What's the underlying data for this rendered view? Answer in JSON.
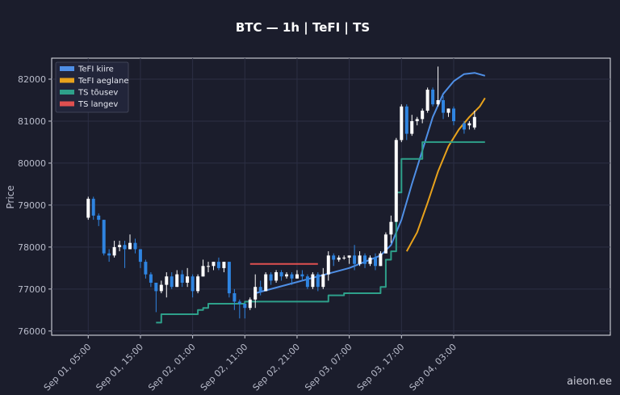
{
  "chart_data": {
    "type": "candlestick",
    "title": "BTC — 1h  |  TeFI  |  TS",
    "ylabel": "Price",
    "xlabel": "",
    "ylim": [
      75900,
      82500
    ],
    "xlim": [
      -7,
      100
    ],
    "yticks": [
      "76000",
      "77000",
      "78000",
      "79000",
      "80000",
      "81000",
      "82000"
    ],
    "ytick_values": [
      76000,
      77000,
      78000,
      79000,
      80000,
      81000,
      82000
    ],
    "xticks": [
      "Sep 01, 05:00",
      "Sep 01, 15:00",
      "Sep 02, 01:00",
      "Sep 02, 11:00",
      "Sep 02, 21:00",
      "Sep 03, 07:00",
      "Sep 03, 17:00",
      "Sep 04, 03:00"
    ],
    "xtick_hours": [
      0,
      10,
      20,
      30,
      40,
      50,
      60,
      70
    ],
    "grid": true,
    "legend": "top-left",
    "legend_entries": [
      {
        "label": "TeFI kiire",
        "color": "#4f8fe6"
      },
      {
        "label": "TeFI aeglane",
        "color": "#e8a21c"
      },
      {
        "label": "TS tõusev",
        "color": "#2ea08a"
      },
      {
        "label": "TS langev",
        "color": "#e05050"
      }
    ],
    "up_color": "#ffffff",
    "down_color": "#2f84e0",
    "candles": [
      [
        0,
        78700,
        79200,
        78650,
        79150
      ],
      [
        1,
        79150,
        79200,
        78650,
        78750
      ],
      [
        2,
        78750,
        78800,
        78500,
        78650
      ],
      [
        3,
        78650,
        78650,
        77800,
        77850
      ],
      [
        4,
        77850,
        77950,
        77650,
        77800
      ],
      [
        5,
        77800,
        78150,
        77750,
        78000
      ],
      [
        6,
        78000,
        78150,
        77900,
        78050
      ],
      [
        7,
        78050,
        78150,
        77500,
        77950
      ],
      [
        8,
        77950,
        78300,
        77950,
        78100
      ],
      [
        9,
        78100,
        78200,
        77850,
        77950
      ],
      [
        10,
        77950,
        77950,
        77500,
        77650
      ],
      [
        11,
        77650,
        77700,
        77250,
        77350
      ],
      [
        12,
        77350,
        77400,
        77050,
        77150
      ],
      [
        13,
        77150,
        77150,
        76450,
        76950
      ],
      [
        14,
        76950,
        77200,
        76900,
        77100
      ],
      [
        15,
        77100,
        77400,
        76800,
        77300
      ],
      [
        16,
        77300,
        77400,
        77000,
        77050
      ],
      [
        17,
        77050,
        77450,
        77050,
        77350
      ],
      [
        18,
        77350,
        77450,
        77050,
        77150
      ],
      [
        19,
        77150,
        77500,
        77050,
        77300
      ],
      [
        20,
        77300,
        77350,
        76800,
        76950
      ],
      [
        21,
        76950,
        77350,
        76900,
        77300
      ],
      [
        22,
        77300,
        77700,
        77300,
        77550
      ],
      [
        23,
        77550,
        77650,
        77400,
        77550
      ],
      [
        24,
        77550,
        77650,
        77450,
        77650
      ],
      [
        25,
        77650,
        77750,
        77450,
        77500
      ],
      [
        26,
        77500,
        77650,
        77400,
        77650
      ],
      [
        27,
        77650,
        77650,
        76800,
        76900
      ],
      [
        28,
        76900,
        77000,
        76500,
        76700
      ],
      [
        29,
        76700,
        76750,
        76300,
        76650
      ],
      [
        30,
        76650,
        76650,
        76300,
        76550
      ],
      [
        31,
        76550,
        76800,
        76500,
        76750
      ],
      [
        32,
        76750,
        77350,
        76550,
        77050
      ],
      [
        33,
        77050,
        77200,
        76850,
        76950
      ],
      [
        34,
        76950,
        77400,
        76950,
        77350
      ],
      [
        35,
        77350,
        77400,
        77100,
        77200
      ],
      [
        36,
        77200,
        77450,
        77150,
        77400
      ],
      [
        37,
        77400,
        77450,
        77200,
        77300
      ],
      [
        38,
        77300,
        77400,
        77250,
        77350
      ],
      [
        39,
        77350,
        77400,
        77100,
        77250
      ],
      [
        40,
        77250,
        77450,
        77250,
        77350
      ],
      [
        41,
        77350,
        77450,
        77200,
        77300
      ],
      [
        42,
        77300,
        77350,
        77000,
        77050
      ],
      [
        43,
        77050,
        77400,
        77000,
        77350
      ],
      [
        44,
        77350,
        77400,
        76950,
        77050
      ],
      [
        45,
        77050,
        77500,
        77000,
        77350
      ],
      [
        46,
        77350,
        77900,
        77200,
        77800
      ],
      [
        47,
        77800,
        77850,
        77550,
        77700
      ],
      [
        48,
        77700,
        77800,
        77650,
        77750
      ],
      [
        49,
        77750,
        77800,
        77700,
        77750
      ],
      [
        50,
        77750,
        77800,
        77600,
        77800
      ],
      [
        51,
        77800,
        78050,
        77450,
        77600
      ],
      [
        52,
        77600,
        77900,
        77550,
        77800
      ],
      [
        53,
        77800,
        77850,
        77500,
        77600
      ],
      [
        54,
        77600,
        77800,
        77550,
        77750
      ],
      [
        55,
        77750,
        77850,
        77450,
        77550
      ],
      [
        56,
        77550,
        77900,
        77550,
        77850
      ],
      [
        57,
        77850,
        78350,
        77850,
        78300
      ],
      [
        58,
        78300,
        78750,
        78100,
        78600
      ],
      [
        59,
        78600,
        80600,
        78600,
        80550
      ],
      [
        60,
        80550,
        81400,
        80500,
        81350
      ],
      [
        61,
        81350,
        81400,
        80550,
        80700
      ],
      [
        62,
        80700,
        81150,
        80650,
        81000
      ],
      [
        63,
        81000,
        81100,
        80900,
        81050
      ],
      [
        64,
        81050,
        81300,
        80950,
        81250
      ],
      [
        65,
        81250,
        81800,
        81200,
        81750
      ],
      [
        66,
        81750,
        81800,
        81350,
        81400
      ],
      [
        67,
        81400,
        82300,
        81350,
        81500
      ],
      [
        68,
        81500,
        81600,
        81050,
        81200
      ],
      [
        69,
        81200,
        81300,
        81100,
        81300
      ],
      [
        70,
        81300,
        81350,
        80900,
        81000
      ],
      [
        72,
        80950,
        81000,
        80700,
        80800
      ],
      [
        73,
        80900,
        81000,
        80800,
        80950
      ],
      [
        74,
        80850,
        81250,
        80800,
        81100
      ]
    ],
    "series": [
      {
        "name": "TeFI kiire",
        "color": "#4f8fe6",
        "points": [
          [
            32,
            76900
          ],
          [
            38,
            77100
          ],
          [
            44,
            77300
          ],
          [
            50,
            77500
          ],
          [
            56,
            77800
          ],
          [
            58,
            78050
          ],
          [
            60,
            78650
          ],
          [
            62,
            79500
          ],
          [
            64,
            80300
          ],
          [
            66,
            81100
          ],
          [
            68,
            81650
          ],
          [
            70,
            81950
          ],
          [
            72,
            82120
          ],
          [
            74,
            82150
          ],
          [
            76,
            82080
          ]
        ]
      },
      {
        "name": "TeFI aeglane",
        "color": "#e8a21c",
        "points": [
          [
            61,
            77900
          ],
          [
            63,
            78350
          ],
          [
            65,
            79050
          ],
          [
            67,
            79800
          ],
          [
            69,
            80400
          ],
          [
            71,
            80800
          ],
          [
            73,
            81100
          ],
          [
            75,
            81350
          ],
          [
            76,
            81550
          ]
        ]
      },
      {
        "name": "TS tõusev",
        "color": "#2ea08a",
        "steps": [
          [
            13,
            76200
          ],
          [
            14,
            76400
          ],
          [
            20,
            76400
          ],
          [
            21,
            76500
          ],
          [
            22,
            76550
          ],
          [
            23,
            76650
          ],
          [
            27,
            76650
          ],
          [
            30,
            76700
          ],
          [
            46,
            76850
          ],
          [
            48,
            76850
          ],
          [
            49,
            76900
          ],
          [
            55,
            76900
          ],
          [
            56,
            77050
          ],
          [
            57,
            77700
          ],
          [
            58,
            77900
          ],
          [
            59,
            79300
          ],
          [
            60,
            80100
          ],
          [
            63,
            80100
          ],
          [
            64,
            80500
          ],
          [
            76,
            80500
          ]
        ]
      },
      {
        "name": "TS langev",
        "color": "#e05050",
        "steps": [
          [
            31,
            77600
          ],
          [
            44,
            77600
          ]
        ]
      }
    ],
    "watermark": "aieon.ee"
  }
}
